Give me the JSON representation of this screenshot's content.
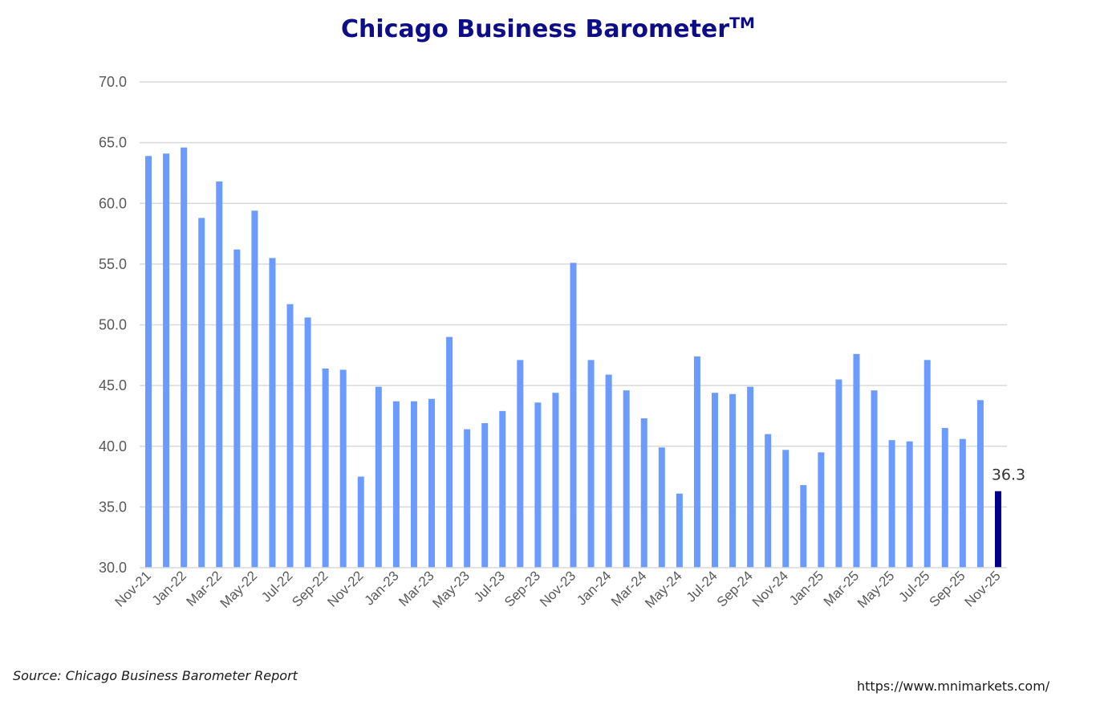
{
  "chart_data": {
    "type": "bar",
    "title": "Chicago Business Barometer",
    "title_superscript": "TM",
    "ylim": [
      30,
      70
    ],
    "y_ticks": [
      "30.0",
      "35.0",
      "40.0",
      "45.0",
      "50.0",
      "55.0",
      "60.0",
      "65.0",
      "70.0"
    ],
    "grid": true,
    "categories": [
      "Nov-21",
      "Dec-21",
      "Jan-22",
      "Feb-22",
      "Mar-22",
      "Apr-22",
      "May-22",
      "Jun-22",
      "Jul-22",
      "Aug-22",
      "Sep-22",
      "Oct-22",
      "Nov-22",
      "Dec-22",
      "Jan-23",
      "Feb-23",
      "Mar-23",
      "Apr-23",
      "May-23",
      "Jun-23",
      "Jul-23",
      "Aug-23",
      "Sep-23",
      "Oct-23",
      "Nov-23",
      "Dec-23",
      "Jan-24",
      "Feb-24",
      "Mar-24",
      "Apr-24",
      "May-24",
      "Jun-24",
      "Jul-24",
      "Aug-24",
      "Sep-24",
      "Oct-24",
      "Nov-24",
      "Dec-24",
      "Jan-25",
      "Feb-25",
      "Mar-25",
      "Apr-25",
      "May-25",
      "Jun-25",
      "Jul-25",
      "Aug-25",
      "Sep-25",
      "Oct-25",
      "Nov-25"
    ],
    "x_tick_labels": [
      "Nov-21",
      "Jan-22",
      "Mar-22",
      "May-22",
      "Jul-22",
      "Sep-22",
      "Nov-22",
      "Jan-23",
      "Mar-23",
      "May-23",
      "Jul-23",
      "Sep-23",
      "Nov-23",
      "Jan-24",
      "Mar-24",
      "May-24",
      "Jul-24",
      "Sep-24",
      "Nov-24",
      "Jan-25",
      "Mar-25",
      "May-25",
      "Jul-25",
      "Sep-25",
      "Nov-25"
    ],
    "values": [
      63.9,
      64.1,
      64.6,
      58.8,
      61.8,
      56.2,
      59.4,
      55.5,
      51.7,
      50.6,
      46.4,
      46.3,
      37.5,
      44.9,
      43.7,
      43.7,
      43.9,
      49.0,
      41.4,
      41.9,
      42.9,
      47.1,
      43.6,
      44.4,
      55.1,
      47.1,
      45.9,
      44.6,
      42.3,
      39.9,
      36.1,
      47.4,
      44.4,
      44.3,
      44.9,
      41.0,
      39.7,
      36.8,
      39.5,
      45.5,
      47.6,
      44.6,
      40.5,
      40.4,
      47.1,
      41.5,
      40.6,
      43.8,
      36.3
    ],
    "data_label": "36.3",
    "colors": {
      "bar": "#6b9bff",
      "highlight_bar": "#00008b",
      "title": "#0d0d8a",
      "grid": "#d9d9d9",
      "tick_text": "#595959"
    }
  },
  "footer": {
    "source": "Source: Chicago Business Barometer Report",
    "url": "https://www.mnimarkets.com/"
  }
}
